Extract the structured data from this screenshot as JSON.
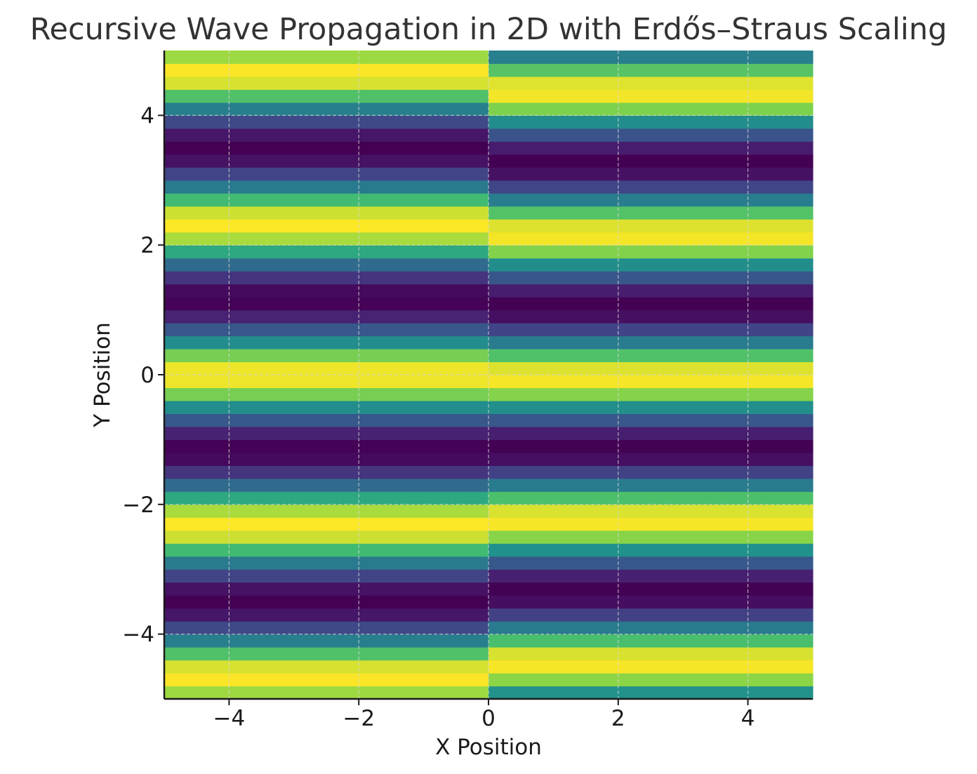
{
  "chart_data": {
    "type": "heatmap",
    "title": "Recursive Wave Propagation in 2D with Erdős–Straus Scaling",
    "xlabel": "X Position",
    "ylabel": "Y Position",
    "xlim": [
      -5,
      5
    ],
    "ylim": [
      -5,
      5
    ],
    "xticks": [
      -4,
      -2,
      0,
      2,
      4
    ],
    "yticks": [
      -4,
      -2,
      0,
      2,
      4
    ],
    "xtick_labels": [
      "−4",
      "−2",
      "0",
      "2",
      "4"
    ],
    "ytick_labels": [
      "−4",
      "−2",
      "0",
      "2",
      "4"
    ],
    "grid": true,
    "colormap": "viridis",
    "value_range": [
      0,
      1
    ],
    "row_height": 0.2,
    "column_split_x": 0,
    "regions": [
      {
        "x_range": [
          -5,
          0
        ],
        "wavenumber": 2.7,
        "phase": 0.0
      },
      {
        "x_range": [
          0,
          5
        ],
        "wavenumber": 2.85,
        "phase": 0.1
      }
    ],
    "value_formula": "0.5 + 0.5*cos(wavenumber*y + phase)"
  }
}
